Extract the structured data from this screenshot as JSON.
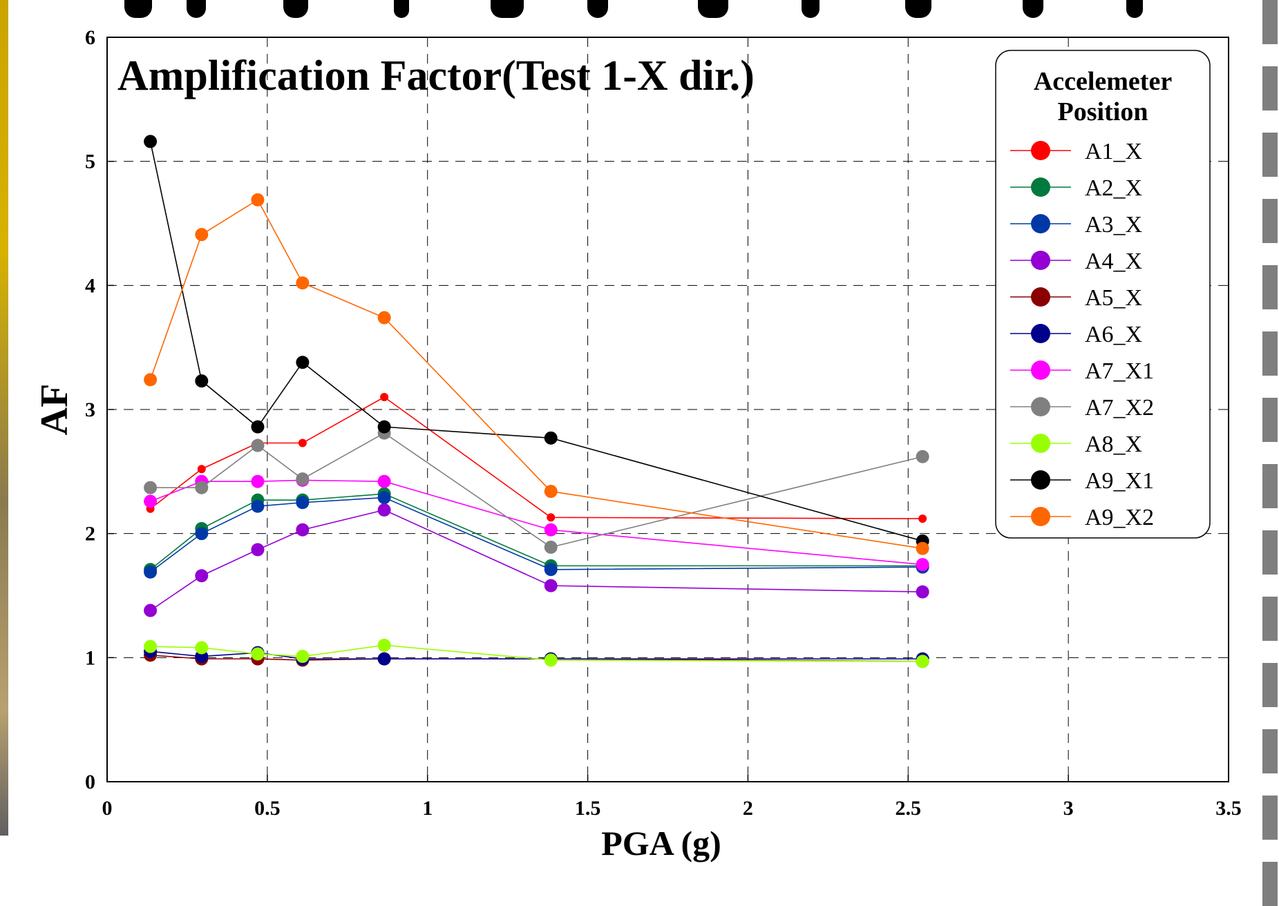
{
  "chart_data": {
    "type": "line",
    "title": "Amplification Factor(Test 1-X dir.)",
    "xlabel": "PGA (g)",
    "ylabel": "AF",
    "xlim": [
      0,
      3.5
    ],
    "ylim": [
      0,
      6
    ],
    "x_ticks": [
      0,
      0.5,
      1,
      1.5,
      2,
      2.5,
      3,
      3.5
    ],
    "x_tick_labels": [
      "0",
      "0.5",
      "1",
      "1.5",
      "2",
      "2.5",
      "3",
      "3.5"
    ],
    "y_ticks": [
      0,
      1,
      2,
      3,
      4,
      5,
      6
    ],
    "y_tick_labels": [
      "0",
      "1",
      "2",
      "3",
      "4",
      "5",
      "6"
    ],
    "grid": true,
    "grid_style": "dashed",
    "legend_title": "Accelemeter Position",
    "legend_position": "top-right",
    "x": [
      0.135,
      0.295,
      0.47,
      0.61,
      0.865,
      1.385,
      2.545
    ],
    "series": [
      {
        "name": "A1_X",
        "color": "#ff0000",
        "marker": "small",
        "values": [
          2.2,
          2.52,
          2.73,
          2.73,
          3.1,
          2.13,
          2.12
        ]
      },
      {
        "name": "A2_X",
        "color": "#007a3d",
        "values": [
          1.71,
          2.04,
          2.27,
          2.27,
          2.32,
          1.74,
          1.74
        ]
      },
      {
        "name": "A3_X",
        "color": "#0039a6",
        "values": [
          1.69,
          2.0,
          2.22,
          2.25,
          2.29,
          1.71,
          1.73
        ]
      },
      {
        "name": "A4_X",
        "color": "#9400d3",
        "values": [
          1.38,
          1.66,
          1.87,
          2.03,
          2.19,
          1.58,
          1.53
        ]
      },
      {
        "name": "A5_X",
        "color": "#8b0000",
        "values": [
          1.02,
          0.99,
          0.99,
          0.98,
          0.99,
          0.99,
          0.97
        ]
      },
      {
        "name": "A6_X",
        "color": "#00008b",
        "values": [
          1.05,
          1.01,
          1.04,
          0.99,
          0.99,
          0.99,
          0.99
        ]
      },
      {
        "name": "A7_X1",
        "color": "#ff00ff",
        "values": [
          2.26,
          2.42,
          2.42,
          2.43,
          2.42,
          2.03,
          1.75
        ]
      },
      {
        "name": "A7_X2",
        "color": "#808080",
        "values": [
          2.37,
          2.37,
          2.71,
          2.44,
          2.81,
          1.89,
          2.62
        ]
      },
      {
        "name": "A8_X",
        "color": "#99ff00",
        "values": [
          1.09,
          1.08,
          1.03,
          1.01,
          1.1,
          0.98,
          0.97
        ]
      },
      {
        "name": "A9_X1",
        "color": "#000000",
        "values": [
          5.16,
          3.23,
          2.86,
          3.38,
          2.86,
          2.77,
          1.94
        ]
      },
      {
        "name": "A9_X2",
        "color": "#ff6600",
        "values": [
          3.24,
          4.41,
          4.69,
          4.02,
          3.74,
          2.34,
          1.88
        ]
      }
    ]
  }
}
